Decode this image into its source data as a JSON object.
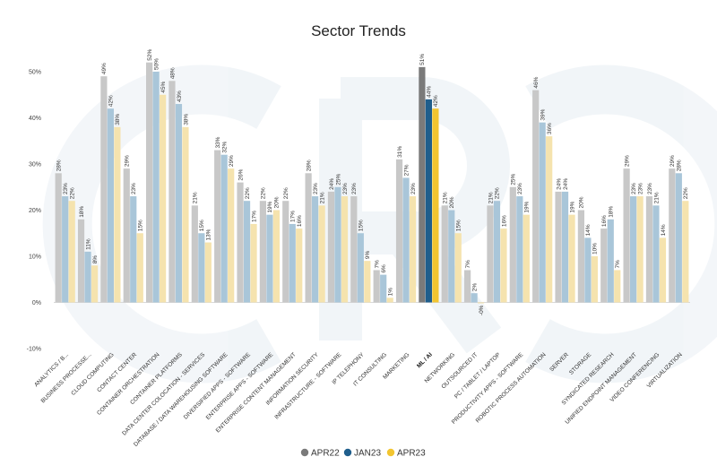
{
  "chart_data": {
    "type": "bar",
    "title": "Sector Trends",
    "xlabel": "",
    "ylabel": "",
    "ylim": [
      -10,
      55
    ],
    "y_ticks": [
      "-10%",
      "0%",
      "10%",
      "20%",
      "30%",
      "40%",
      "50%"
    ],
    "highlight_category": "ML / AI",
    "categories": [
      "ANALYTICS / B...",
      "BUSINESS PROCESSE...",
      "CLOUD COMPUTING",
      "CONTACT CENTER",
      "CONTAINER ORCHESTRATION",
      "CONTAINER PLATFORMS",
      "DATA CENTER COLOCATION - SERVICES",
      "DATABASE / DATA WAREHOUSING SOFTWARE",
      "DIVERSIFIED APPS - SOFTWARE",
      "ENTERPRISE APPS - SOFTWARE",
      "ENTERPRISE CONTENT MANAGEMENT",
      "INFORMATION SECURITY",
      "INFRASTRUCTURE - SOFTWARE",
      "IP TELEPHONY",
      "IT CONSULTING",
      "MARKETING",
      "ML / AI",
      "NETWORKING",
      "OUTSOURCED IT",
      "PC / TABLET / LAPTOP",
      "PRODUCTIVITY APPS - SOFTWARE",
      "ROBOTIC PROCESS AUTOMATION",
      "SERVER",
      "STORAGE",
      "SYNDICATED RESEARCH",
      "UNIFIED ENDPOINT MANAGEMENT",
      "VIDEO CONFERENCING",
      "VIRTUALIZATION"
    ],
    "series": [
      {
        "name": "APR22",
        "color": "#c8c8c8",
        "highlight_color": "#7a7a7a",
        "values": [
          28,
          18,
          49,
          29,
          52,
          48,
          21,
          33,
          26,
          22,
          22,
          28,
          24,
          23,
          7,
          31,
          51,
          21,
          7,
          21,
          25,
          46,
          24,
          20,
          16,
          29,
          23,
          29
        ],
        "labels": [
          "28%",
          "18%",
          "49%",
          "29%",
          "52%",
          "48%",
          "21%",
          "33%",
          "26%",
          "22%",
          "22%",
          "28%",
          "24%",
          "23%",
          "7%",
          "31%",
          "51%",
          "21%",
          "7%",
          "21%",
          "25%",
          "46%",
          "24%",
          "20%",
          "16%",
          "29%",
          "23%",
          "29%"
        ]
      },
      {
        "name": "JAN23",
        "color": "#a9c6d9",
        "highlight_color": "#1f5e8c",
        "values": [
          23,
          11,
          42,
          23,
          50,
          43,
          15,
          32,
          22,
          19,
          17,
          23,
          25,
          15,
          6,
          27,
          44,
          20,
          2,
          22,
          23,
          39,
          24,
          14,
          18,
          23,
          21,
          28
        ],
        "labels": [
          "23%",
          "11%",
          "42%",
          "23%",
          "50%",
          "43%",
          "15%",
          "32%",
          "22%",
          "19%",
          "17%",
          "23%",
          "25%",
          "15%",
          "6%",
          "27%",
          "44%",
          "20%",
          "2%",
          "22%",
          "23%",
          "39%",
          "24%",
          "14%",
          "18%",
          "23%",
          "21%",
          "28%"
        ]
      },
      {
        "name": "APR23",
        "color": "#f5e3ae",
        "highlight_color": "#f2c530",
        "values": [
          22,
          8,
          38,
          15,
          45,
          38,
          13,
          29,
          17,
          20,
          16,
          21,
          23,
          9,
          1,
          23,
          42,
          15,
          -0.2,
          16,
          19,
          36,
          19,
          10,
          7,
          23,
          14,
          22
        ],
        "labels": [
          "22%",
          "8%",
          "38%",
          "15%",
          "45%",
          "38%",
          "13%",
          "29%",
          "17%",
          "20%",
          "16%",
          "21%",
          "23%",
          "9%",
          "1%",
          "23%",
          "42%",
          "15%",
          "-0%",
          "16%",
          "19%",
          "36%",
          "19%",
          "10%",
          "7%",
          "23%",
          "14%",
          "22%"
        ]
      }
    ],
    "legend_position": "bottom-center",
    "grid": false
  }
}
